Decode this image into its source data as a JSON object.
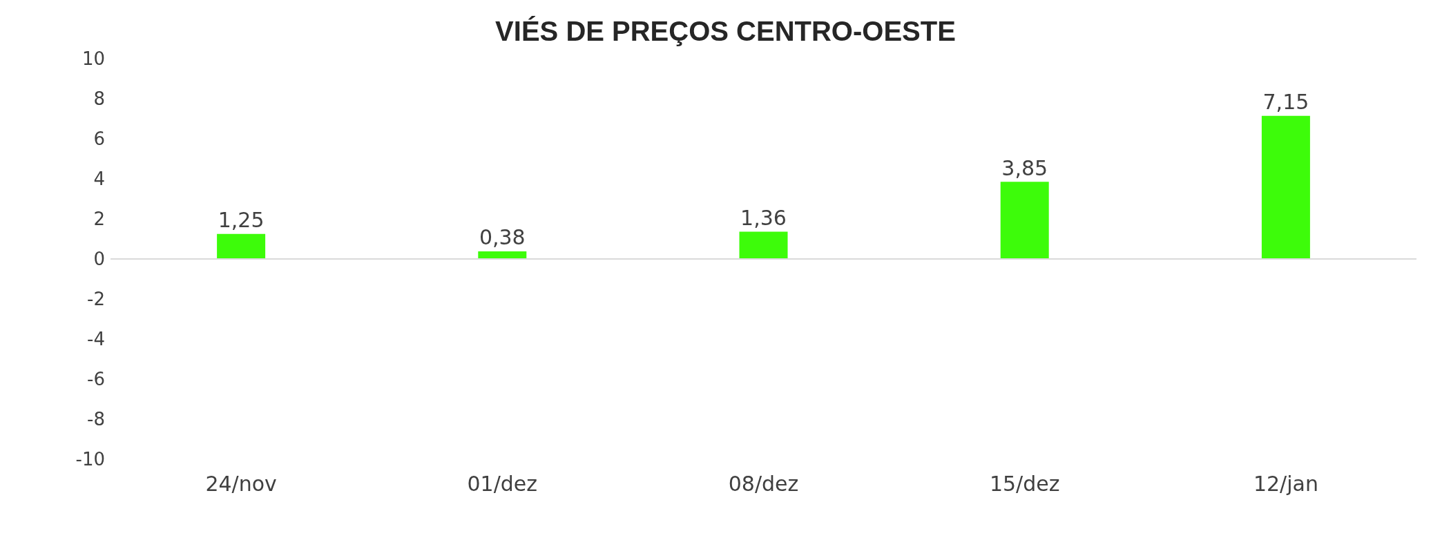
{
  "chart_data": {
    "type": "bar",
    "title": "VIÉS DE PREÇOS CENTRO-OESTE",
    "categories": [
      "24/nov",
      "01/dez",
      "08/dez",
      "15/dez",
      "12/jan"
    ],
    "values": [
      1.25,
      0.38,
      1.36,
      3.85,
      7.15
    ],
    "color": "#3dfc0a",
    "ylim": [
      -10,
      10
    ],
    "yticks": [
      -10,
      -8,
      -6,
      -4,
      -2,
      0,
      2,
      4,
      6,
      8,
      10
    ],
    "grid": false,
    "ref_lines": [
      {
        "axis": "y",
        "value": 0,
        "color": "#d9d9d9"
      }
    ],
    "value_labels": [
      "1,25",
      "0,38",
      "1,36",
      "3,85",
      "7,15"
    ]
  }
}
